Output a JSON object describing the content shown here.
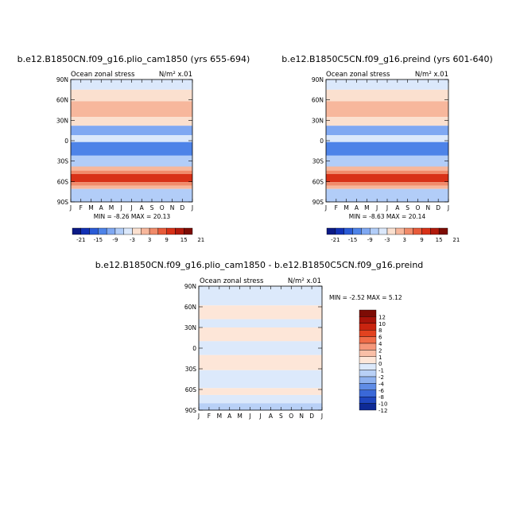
{
  "chart_data": [
    {
      "type": "heatmap",
      "title": "b.e12.B1850CN.f09_g16.plio_cam1850 (yrs 655-694)",
      "subtitle_left": "Ocean zonal stress",
      "units": "N/m² x.01",
      "x_tick_labels": [
        "J",
        "F",
        "M",
        "A",
        "M",
        "J",
        "J",
        "A",
        "S",
        "O",
        "N",
        "D",
        "J"
      ],
      "y_tick_labels": [
        "90N",
        "60N",
        "30N",
        "0",
        "30S",
        "60S",
        "90S"
      ],
      "stats": "MIN = -8.26  MAX = 20.13",
      "colorbar_labels": [
        "-21",
        "-15",
        "-9",
        "-3",
        "3",
        "9",
        "15",
        "21"
      ],
      "lat_bands": [
        {
          "lat": [
            75,
            90
          ],
          "value": 0
        },
        {
          "lat": [
            58,
            75
          ],
          "value": 2
        },
        {
          "lat": [
            35,
            58
          ],
          "value": 6
        },
        {
          "lat": [
            22,
            35
          ],
          "value": 2
        },
        {
          "lat": [
            8,
            22
          ],
          "value": -4
        },
        {
          "lat": [
            -2,
            8
          ],
          "value": 0
        },
        {
          "lat": [
            -22,
            -2
          ],
          "value": -5
        },
        {
          "lat": [
            -38,
            -22
          ],
          "value": -2
        },
        {
          "lat": [
            -44,
            -38
          ],
          "value": 3
        },
        {
          "lat": [
            -49,
            -44
          ],
          "value": 9
        },
        {
          "lat": [
            -61,
            -49
          ],
          "value": 15
        },
        {
          "lat": [
            -66,
            -61
          ],
          "value": 9
        },
        {
          "lat": [
            -71,
            -66
          ],
          "value": 3
        },
        {
          "lat": [
            -90,
            -71
          ],
          "value": -2
        }
      ]
    },
    {
      "type": "heatmap",
      "title": "b.e12.B1850C5CN.f09_g16.preind (yrs 601-640)",
      "subtitle_left": "Ocean zonal stress",
      "units": "N/m² x.01",
      "x_tick_labels": [
        "J",
        "F",
        "M",
        "A",
        "M",
        "J",
        "J",
        "A",
        "S",
        "O",
        "N",
        "D",
        "J"
      ],
      "y_tick_labels": [
        "90N",
        "60N",
        "30N",
        "0",
        "30S",
        "60S",
        "90S"
      ],
      "stats": "MIN = -8.63  MAX = 20.14",
      "colorbar_labels": [
        "-21",
        "-15",
        "-9",
        "-3",
        "3",
        "9",
        "15",
        "21"
      ],
      "lat_bands": [
        {
          "lat": [
            75,
            90
          ],
          "value": 0
        },
        {
          "lat": [
            58,
            75
          ],
          "value": 2
        },
        {
          "lat": [
            35,
            58
          ],
          "value": 6
        },
        {
          "lat": [
            22,
            35
          ],
          "value": 2
        },
        {
          "lat": [
            8,
            22
          ],
          "value": -4
        },
        {
          "lat": [
            -2,
            8
          ],
          "value": 0
        },
        {
          "lat": [
            -22,
            -2
          ],
          "value": -5
        },
        {
          "lat": [
            -38,
            -22
          ],
          "value": -2
        },
        {
          "lat": [
            -44,
            -38
          ],
          "value": 3
        },
        {
          "lat": [
            -49,
            -44
          ],
          "value": 9
        },
        {
          "lat": [
            -61,
            -49
          ],
          "value": 15
        },
        {
          "lat": [
            -66,
            -61
          ],
          "value": 9
        },
        {
          "lat": [
            -71,
            -66
          ],
          "value": 3
        },
        {
          "lat": [
            -90,
            -71
          ],
          "value": -2
        }
      ]
    },
    {
      "type": "heatmap",
      "title": "b.e12.B1850CN.f09_g16.plio_cam1850 - b.e12.B1850C5CN.f09_g16.preind",
      "subtitle_left": "Ocean zonal stress",
      "units": "N/m² x.01",
      "x_tick_labels": [
        "J",
        "F",
        "M",
        "A",
        "M",
        "J",
        "J",
        "A",
        "S",
        "O",
        "N",
        "D",
        "J"
      ],
      "y_tick_labels": [
        "90N",
        "60N",
        "30N",
        "0",
        "30S",
        "60S",
        "90S"
      ],
      "stats": "MIN = -2.52 MAX = 5.12",
      "colorbar_labels": [
        "12",
        "10",
        "8",
        "6",
        "4",
        "2",
        "1",
        "0",
        "-1",
        "-2",
        "-4",
        "-6",
        "-8",
        "-10",
        "-12"
      ],
      "lat_bands": [
        {
          "lat": [
            62,
            90
          ],
          "value": -0.5
        },
        {
          "lat": [
            42,
            62
          ],
          "value": 0.5
        },
        {
          "lat": [
            30,
            42
          ],
          "value": -0.5
        },
        {
          "lat": [
            10,
            30
          ],
          "value": 0.5
        },
        {
          "lat": [
            -10,
            10
          ],
          "value": -0.5
        },
        {
          "lat": [
            -32,
            -10
          ],
          "value": 0.5
        },
        {
          "lat": [
            -58,
            -32
          ],
          "value": -0.5
        },
        {
          "lat": [
            -68,
            -58
          ],
          "value": 0.5
        },
        {
          "lat": [
            -80,
            -68
          ],
          "value": -0.5
        },
        {
          "lat": [
            -90,
            -80
          ],
          "value": -1.5
        }
      ]
    }
  ],
  "colors": {
    "cb1": [
      "#0b1a86",
      "#1231b5",
      "#2a5bd6",
      "#4d83e8",
      "#7fa8f2",
      "#b2cdf8",
      "#dbe8fb",
      "#fbe0cf",
      "#f7b79c",
      "#f18b6a",
      "#e85b3a",
      "#d83117",
      "#b21a0c",
      "#7d0c05"
    ],
    "cb3": [
      "#7d0c05",
      "#a8140a",
      "#c9240f",
      "#e2421f",
      "#f06c48",
      "#f5977a",
      "#f9bfa7",
      "#fde6d8",
      "#dce9fb",
      "#b8d0f6",
      "#8eb1ef",
      "#5f8ce6",
      "#3a68d8",
      "#1f46bf",
      "#0e2a96"
    ]
  }
}
